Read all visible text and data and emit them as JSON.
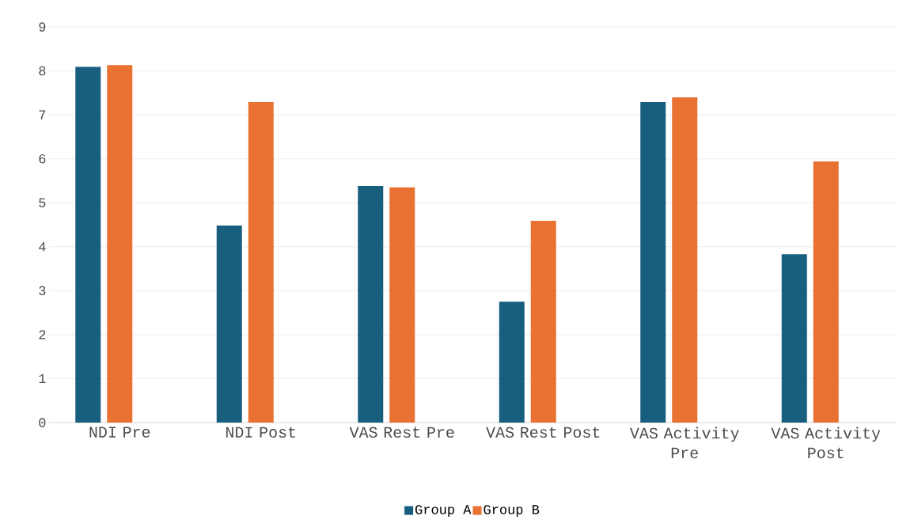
{
  "chart_data": {
    "type": "bar",
    "categories": [
      "NDI Pre",
      "NDI Post",
      "VAS Rest Pre",
      "VAS Rest Post",
      "VAS Activity Pre",
      "VAS Activity Post"
    ],
    "series": [
      {
        "name": "Group A",
        "color": "#175e7f",
        "values": [
          8.09,
          4.48,
          5.38,
          2.75,
          7.29,
          3.83
        ]
      },
      {
        "name": "Group B",
        "color": "#e97132",
        "values": [
          8.13,
          7.29,
          5.35,
          4.59,
          7.4,
          5.94
        ]
      }
    ],
    "ylim": [
      0,
      9
    ],
    "yticks": [
      0,
      1,
      2,
      3,
      4,
      5,
      6,
      7,
      8,
      9
    ],
    "grid": "y",
    "legend": "bottom"
  }
}
